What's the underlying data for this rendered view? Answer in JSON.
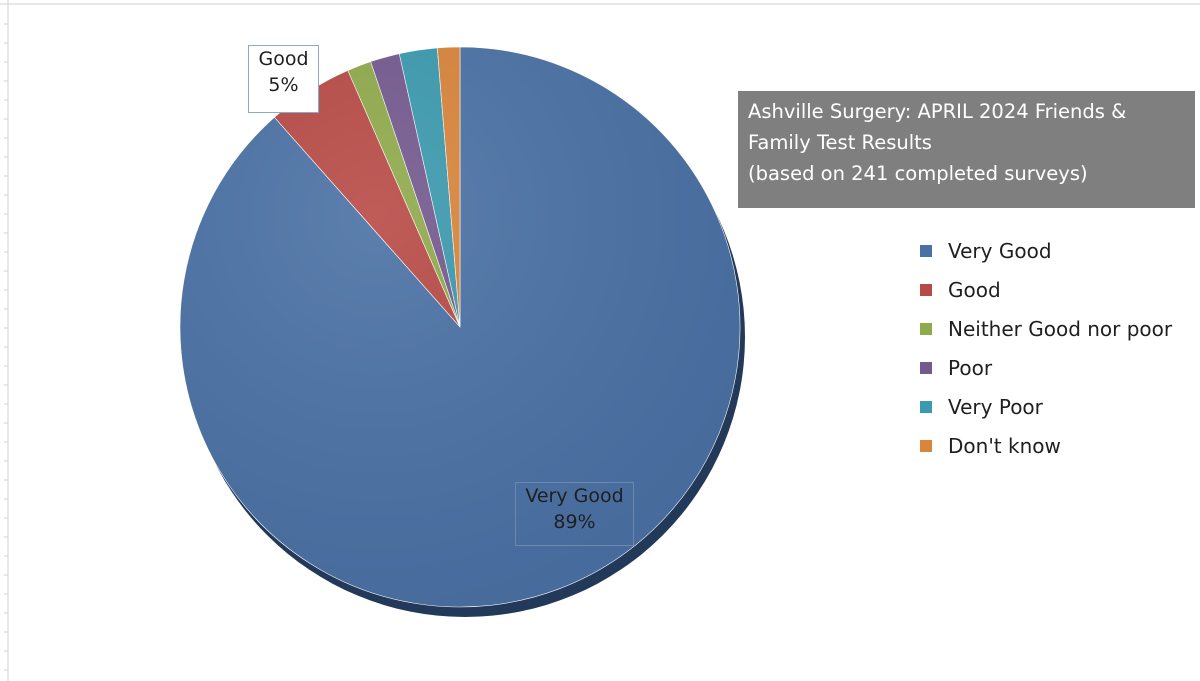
{
  "chart_data": {
    "type": "pie",
    "title_lines": [
      "Ashville Surgery: APRIL 2024 Friends &",
      "Family Test Results",
      "(based on 241 completed surveys)"
    ],
    "legend_position": "right",
    "slices": [
      {
        "name": "Very Good",
        "value": 89,
        "color": "#4A71A5",
        "label": "Very Good",
        "label_value": "89%"
      },
      {
        "name": "Good",
        "value": 5,
        "color": "#B84A46",
        "label": "Good",
        "label_value": "5%"
      },
      {
        "name": "Neither Good nor poor",
        "value": 1.4,
        "color": "#8FAA4B",
        "label": null
      },
      {
        "name": "Poor",
        "value": 1.7,
        "color": "#74598F",
        "label": null
      },
      {
        "name": "Very Poor",
        "value": 2.2,
        "color": "#3B9AAE",
        "label": null
      },
      {
        "name": "Don't know",
        "value": 1.3,
        "color": "#D9853B",
        "label": null
      }
    ],
    "legend": [
      {
        "name": "Very Good",
        "color": "#4A71A5"
      },
      {
        "name": "Good",
        "color": "#B84A46"
      },
      {
        "name": "Neither Good nor poor",
        "color": "#8FAA4B"
      },
      {
        "name": "Poor",
        "color": "#74598F"
      },
      {
        "name": "Very Poor",
        "color": "#3B9AAE"
      },
      {
        "name": "Don't know",
        "color": "#D9853B"
      }
    ]
  }
}
